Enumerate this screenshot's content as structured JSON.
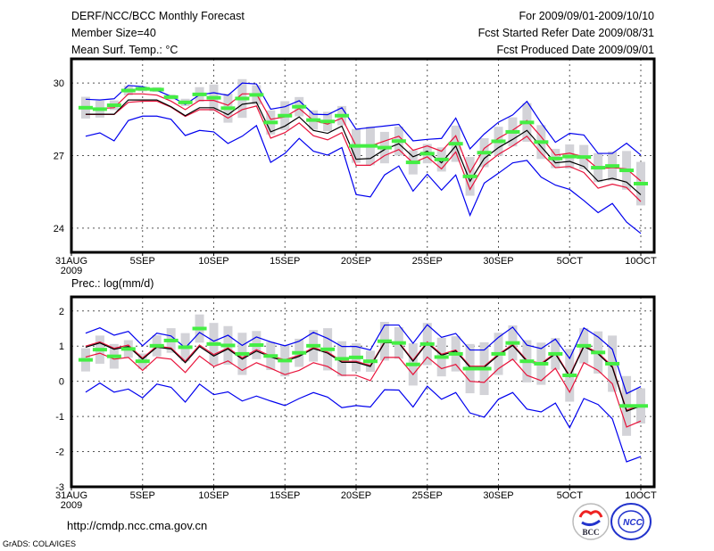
{
  "header": {
    "title": "DERF/NCC/BCC Monthly Forecast",
    "member_size": "Member Size=40",
    "top_variable": "Mean Surf. Temp.: °C",
    "period": "For 2009/09/01-2009/10/10",
    "started": "Fcst Started Refer Date 2009/08/31",
    "produced": "Fcst Produced Date 2009/09/01"
  },
  "footer": {
    "url": "http://cmdp.ncc.cma.gov.cn",
    "credit": "GrADS: COLA/IGES",
    "logo_left": "BCC",
    "logo_right": "NCC"
  },
  "colors": {
    "mean": "#000000",
    "spread": "#e8123a",
    "envelope": "#0000ee",
    "member": "#44ee44",
    "box": "#d3d3d8"
  },
  "chart_data": [
    {
      "type": "line",
      "title": "Mean Surf. Temp.: °C",
      "x_tick_labels": [
        "31AUG",
        "5SEP",
        "10SEP",
        "15SEP",
        "20SEP",
        "25SEP",
        "30SEP",
        "5OCT",
        "10OCT"
      ],
      "x_tick_days": [
        0,
        5,
        10,
        15,
        20,
        25,
        30,
        35,
        40
      ],
      "x_year_label": "2009",
      "y_ticks": [
        "24",
        "27",
        "30"
      ],
      "y_tick_values": [
        24,
        27,
        30
      ],
      "ylim": [
        23,
        31
      ],
      "xlim": [
        0,
        41
      ],
      "grid": true,
      "days": [
        1,
        2,
        3,
        4,
        5,
        6,
        7,
        8,
        9,
        10,
        11,
        12,
        13,
        14,
        15,
        16,
        17,
        18,
        19,
        20,
        21,
        22,
        23,
        24,
        25,
        26,
        27,
        28,
        29,
        30,
        31,
        32,
        33,
        34,
        35,
        36,
        37,
        38,
        39,
        40
      ],
      "series": [
        {
          "name": "mean",
          "values": [
            28.71,
            28.71,
            28.71,
            29.3,
            29.3,
            29.3,
            29.02,
            28.65,
            28.98,
            28.98,
            28.69,
            29.12,
            29.2,
            27.98,
            28.22,
            28.6,
            28.04,
            27.92,
            28.22,
            26.85,
            26.88,
            27.25,
            27.49,
            26.95,
            27.18,
            26.7,
            27.4,
            25.94,
            26.88,
            27.33,
            27.67,
            28.04,
            27.37,
            26.7,
            26.76,
            26.55,
            25.94,
            26.06,
            25.9,
            25.38
          ]
        },
        {
          "name": "spread_upper",
          "values": [
            28.95,
            28.95,
            28.98,
            29.55,
            29.55,
            29.5,
            29.25,
            28.9,
            29.28,
            29.28,
            29.08,
            29.55,
            29.55,
            28.5,
            28.6,
            28.95,
            28.45,
            28.3,
            28.55,
            27.4,
            27.4,
            27.6,
            27.8,
            27.22,
            27.4,
            27.18,
            27.82,
            26.3,
            27.3,
            27.72,
            28.05,
            28.45,
            27.78,
            27.02,
            27.1,
            26.95,
            26.45,
            26.5,
            26.45,
            25.95
          ]
        },
        {
          "name": "spread_lower",
          "values": [
            28.7,
            28.7,
            28.7,
            29.2,
            29.25,
            29.25,
            29.0,
            28.62,
            28.9,
            28.9,
            28.55,
            28.9,
            29.05,
            27.72,
            27.95,
            28.35,
            27.82,
            27.65,
            27.95,
            26.6,
            26.6,
            27.0,
            27.25,
            26.7,
            26.95,
            26.45,
            27.15,
            25.6,
            26.6,
            27.05,
            27.4,
            27.8,
            27.1,
            26.5,
            26.55,
            26.3,
            25.65,
            25.82,
            25.68,
            25.1
          ]
        },
        {
          "name": "envelope_upper",
          "values": [
            29.33,
            29.3,
            29.35,
            29.9,
            29.85,
            29.7,
            29.45,
            29.12,
            29.51,
            29.6,
            29.49,
            30.0,
            29.96,
            28.92,
            29.02,
            29.27,
            28.71,
            28.69,
            28.98,
            28.09,
            28.16,
            28.22,
            28.29,
            27.61,
            27.67,
            27.71,
            28.55,
            27.28,
            27.89,
            28.38,
            28.68,
            29.24,
            28.35,
            27.55,
            27.92,
            27.85,
            27.09,
            27.09,
            27.51,
            27.02
          ]
        },
        {
          "name": "envelope_lower",
          "values": [
            27.8,
            27.94,
            27.61,
            28.45,
            28.63,
            28.63,
            28.5,
            27.83,
            28.04,
            27.98,
            27.5,
            27.8,
            28.24,
            26.72,
            27.09,
            27.71,
            27.18,
            27.02,
            27.33,
            25.39,
            25.29,
            26.2,
            26.57,
            25.53,
            26.23,
            25.57,
            26.2,
            24.53,
            25.86,
            26.27,
            26.7,
            26.8,
            26.11,
            25.78,
            25.6,
            25.14,
            24.64,
            25.02,
            24.25,
            23.78
          ]
        },
        {
          "name": "member_marker",
          "values": [
            28.98,
            28.92,
            29.08,
            29.69,
            29.76,
            29.73,
            29.42,
            29.2,
            29.53,
            29.39,
            28.96,
            29.36,
            29.51,
            28.37,
            28.65,
            29.02,
            28.47,
            28.41,
            28.65,
            27.4,
            27.4,
            27.33,
            27.6,
            26.72,
            27.08,
            26.84,
            27.49,
            26.14,
            27.12,
            27.59,
            27.98,
            28.37,
            27.56,
            26.88,
            26.96,
            26.94,
            26.5,
            26.57,
            26.39,
            25.84
          ]
        },
        {
          "name": "box_half_range",
          "values": [
            0.45,
            0.35,
            0.2,
            0.2,
            0.1,
            0.1,
            0.1,
            0.15,
            0.3,
            0.55,
            0.6,
            0.8,
            0.4,
            0.5,
            0.6,
            0.4,
            0.4,
            0.4,
            0.4,
            0.7,
            0.8,
            0.65,
            0.6,
            0.5,
            0.4,
            0.5,
            0.75,
            0.8,
            0.6,
            0.6,
            0.6,
            0.8,
            0.7,
            0.4,
            0.5,
            0.5,
            0.6,
            0.6,
            0.8,
            0.9
          ]
        }
      ]
    },
    {
      "type": "line",
      "title": "Prec.: log(mm/d)",
      "x_tick_labels": [
        "31AUG",
        "5SEP",
        "10SEP",
        "15SEP",
        "20SEP",
        "25SEP",
        "30SEP",
        "5OCT",
        "10OCT"
      ],
      "x_tick_days": [
        0,
        5,
        10,
        15,
        20,
        25,
        30,
        35,
        40
      ],
      "x_year_label": "2009",
      "y_ticks": [
        "-3",
        "-2",
        "-1",
        "0",
        "1",
        "2"
      ],
      "y_tick_values": [
        -3,
        -2,
        -1,
        0,
        1,
        2
      ],
      "ylim": [
        -3,
        2.4
      ],
      "xlim": [
        0,
        41
      ],
      "grid": true,
      "days": [
        1,
        2,
        3,
        4,
        5,
        6,
        7,
        8,
        9,
        10,
        11,
        12,
        13,
        14,
        15,
        16,
        17,
        18,
        19,
        20,
        21,
        22,
        23,
        24,
        25,
        26,
        27,
        28,
        29,
        30,
        31,
        32,
        33,
        34,
        35,
        36,
        37,
        38,
        39,
        40
      ],
      "series": [
        {
          "name": "mean",
          "values": [
            0.97,
            1.09,
            0.91,
            0.99,
            0.63,
            0.97,
            0.92,
            0.53,
            0.99,
            0.72,
            0.92,
            0.63,
            0.86,
            0.69,
            0.57,
            0.71,
            0.93,
            0.8,
            0.54,
            0.54,
            0.42,
            1.1,
            1.09,
            0.57,
            1.09,
            0.74,
            0.86,
            0.4,
            0.4,
            0.74,
            1.02,
            0.57,
            0.48,
            0.78,
            0.13,
            0.99,
            0.78,
            0.4,
            -0.85,
            -0.7
          ]
        },
        {
          "name": "spread_upper",
          "values": [
            1.0,
            1.12,
            0.94,
            1.03,
            0.66,
            1.0,
            0.95,
            0.57,
            1.03,
            0.76,
            0.95,
            0.67,
            0.9,
            0.72,
            0.61,
            0.74,
            0.96,
            0.83,
            0.57,
            0.57,
            0.45,
            1.12,
            1.11,
            0.6,
            1.12,
            0.77,
            0.89,
            0.43,
            0.43,
            0.77,
            1.05,
            0.6,
            0.51,
            0.81,
            0.16,
            1.02,
            0.81,
            0.43,
            -0.82,
            -0.67
          ]
        },
        {
          "name": "spread_lower",
          "values": [
            0.69,
            0.8,
            0.63,
            0.68,
            0.31,
            0.68,
            0.63,
            0.25,
            0.72,
            0.42,
            0.58,
            0.31,
            0.53,
            0.37,
            0.19,
            0.31,
            0.53,
            0.42,
            0.17,
            0.17,
            0.02,
            0.68,
            0.68,
            0.19,
            0.69,
            0.36,
            0.48,
            0.0,
            -0.03,
            0.36,
            0.63,
            0.17,
            0.02,
            0.37,
            -0.31,
            0.53,
            0.31,
            -0.07,
            -1.3,
            -1.13
          ]
        },
        {
          "name": "envelope_upper",
          "values": [
            1.37,
            1.52,
            1.31,
            1.42,
            1.01,
            1.37,
            1.29,
            0.95,
            1.39,
            1.14,
            1.31,
            1.02,
            1.26,
            1.12,
            1.01,
            1.14,
            1.39,
            1.22,
            0.99,
            0.99,
            0.89,
            1.6,
            1.6,
            1.08,
            1.61,
            1.25,
            1.36,
            0.89,
            0.89,
            1.25,
            1.54,
            1.03,
            0.93,
            1.2,
            0.65,
            1.52,
            1.26,
            0.91,
            -0.35,
            -0.15
          ]
        },
        {
          "name": "envelope_lower",
          "values": [
            -0.31,
            -0.05,
            -0.31,
            -0.22,
            -0.47,
            -0.08,
            -0.17,
            -0.59,
            -0.08,
            -0.38,
            -0.3,
            -0.56,
            -0.42,
            -0.56,
            -0.69,
            -0.49,
            -0.32,
            -0.45,
            -0.75,
            -0.69,
            -0.73,
            -0.24,
            -0.25,
            -0.73,
            -0.14,
            -0.51,
            -0.32,
            -0.9,
            -1.02,
            -0.51,
            -0.32,
            -0.79,
            -0.87,
            -0.62,
            -1.32,
            -0.49,
            -0.66,
            -1.07,
            -2.29,
            -2.14
          ]
        },
        {
          "name": "member_marker",
          "values": [
            0.61,
            0.9,
            0.71,
            0.92,
            0.57,
            1.01,
            1.16,
            0.97,
            1.5,
            1.06,
            1.02,
            0.78,
            1.03,
            0.72,
            0.59,
            0.81,
            1.01,
            0.91,
            0.64,
            0.68,
            0.57,
            1.14,
            1.09,
            0.48,
            1.06,
            0.69,
            0.78,
            0.36,
            0.36,
            0.78,
            1.09,
            0.57,
            0.5,
            0.78,
            0.17,
            1.01,
            0.82,
            0.5,
            -0.7,
            -0.7
          ]
        },
        {
          "name": "box_half_range",
          "values": [
            0.33,
            0.4,
            0.35,
            0.25,
            0.22,
            0.3,
            0.35,
            0.4,
            0.4,
            0.6,
            0.55,
            0.6,
            0.4,
            0.4,
            0.45,
            0.4,
            0.45,
            0.6,
            0.5,
            0.4,
            0.3,
            0.55,
            0.45,
            0.6,
            0.6,
            0.55,
            0.5,
            0.7,
            0.75,
            0.6,
            0.5,
            0.6,
            0.6,
            0.45,
            0.75,
            0.5,
            0.6,
            0.8,
            0.85,
            0.5
          ]
        }
      ]
    }
  ]
}
